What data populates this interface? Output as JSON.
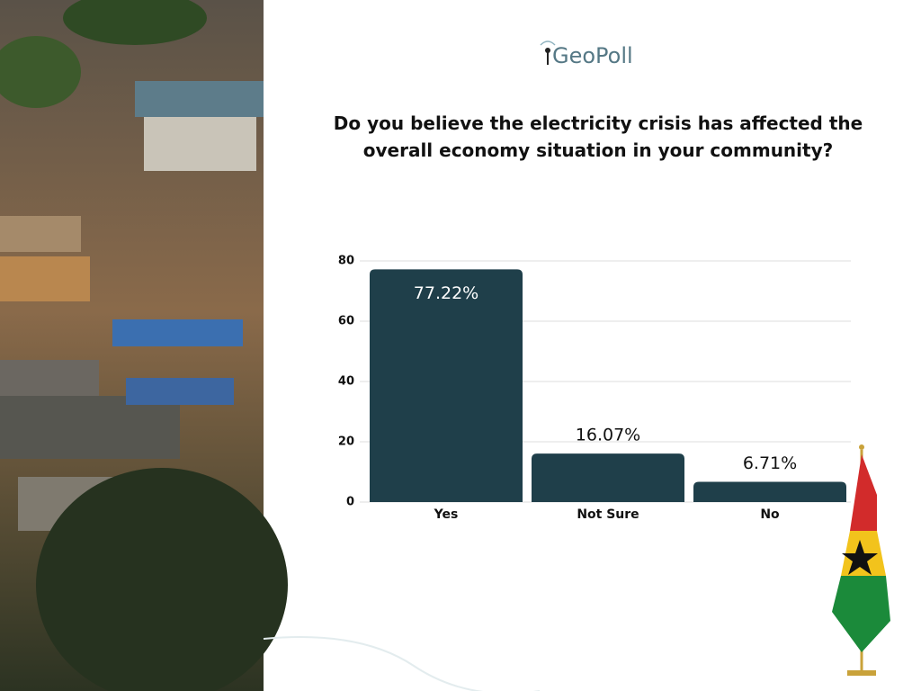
{
  "brand": "GeoPoll",
  "chart_data": {
    "type": "bar",
    "title": "Do you believe the electricity crisis has affected the overall economy situation in your community?",
    "categories": [
      "Yes",
      "Not Sure",
      "No"
    ],
    "values": [
      77.22,
      16.07,
      6.71
    ],
    "value_labels": [
      "77.22%",
      "16.07%",
      "6.71%"
    ],
    "color": "#1f3f4a",
    "ylim": [
      0,
      80
    ],
    "yticks": [
      0,
      20,
      40,
      60,
      80
    ],
    "grid": true
  }
}
